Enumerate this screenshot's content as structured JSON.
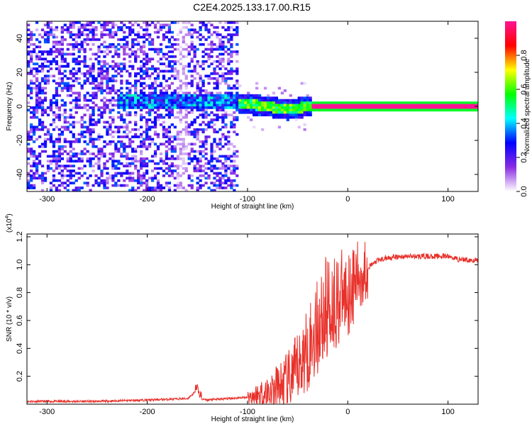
{
  "page": {
    "title": "C2E4.2025.133.17.00.R15"
  },
  "chart_data": [
    {
      "type": "heatmap",
      "title": "C2E4.2025.133.17.00.R15",
      "xlabel": "Height of straight line (km)",
      "ylabel": "Frequency (Hz)",
      "xlim": [
        -320,
        130
      ],
      "ylim": [
        -50,
        50
      ],
      "x_ticks": [
        -300,
        -200,
        -100,
        0,
        100
      ],
      "y_ticks": [
        -40,
        -20,
        0,
        20,
        40
      ],
      "colorbar": {
        "label": "Normalized spectral amplitude",
        "range": [
          0,
          1
        ],
        "ticks": [
          "0.0",
          "0.2",
          "0.4",
          "0.6",
          "0.8"
        ],
        "tick_values": [
          0.0,
          0.2,
          0.4,
          0.6,
          0.8
        ],
        "colormap": [
          "#ffffff",
          "#8a2be2",
          "#0000ff",
          "#00ffff",
          "#00ff00",
          "#ffff00",
          "#ff0000",
          "#ff1493"
        ]
      },
      "features": [
        {
          "description": "tonal line",
          "freq": 0,
          "x_range": [
            -35,
            130
          ],
          "amplitude": 1.0
        },
        {
          "description": "drifting tone",
          "points": [
            [
              -110,
              2
            ],
            [
              -80,
              0
            ],
            [
              -60,
              -2
            ],
            [
              -40,
              0
            ],
            [
              -20,
              2
            ],
            [
              -5,
              1
            ]
          ]
        },
        {
          "description": "broadband noise",
          "x_range": [
            -320,
            -110
          ],
          "amplitude": 0.3
        }
      ],
      "grid": false
    },
    {
      "type": "line",
      "xlabel": "Height of straight line (km)",
      "ylabel": "SNR (10 * v/v)",
      "y_multiplier": "(x10",
      "y_multiplier_exp": "4",
      "y_multiplier_close": ")",
      "xlim": [
        -320,
        130
      ],
      "ylim": [
        0,
        1.22
      ],
      "x_ticks": [
        -300,
        -200,
        -100,
        0,
        100
      ],
      "y_ticks": [
        0.2,
        0.4,
        0.6,
        0.8,
        1.0,
        1.2
      ],
      "y_tick_labels": [
        "0.2",
        "0.4",
        "0.6",
        "0.8",
        "1.0",
        "1.2"
      ],
      "series": [
        {
          "color": "#e8302a",
          "x": [
            -320,
            -250,
            -200,
            -160,
            -150,
            -148,
            -140,
            -120,
            -100,
            -80,
            -60,
            -50,
            -40,
            -30,
            -20,
            -10,
            0,
            10,
            20,
            30,
            40,
            60,
            80,
            100,
            110,
            130
          ],
          "y": [
            0.02,
            0.02,
            0.03,
            0.04,
            0.1,
            0.04,
            0.03,
            0.04,
            0.05,
            0.08,
            0.15,
            0.25,
            0.4,
            0.55,
            0.7,
            0.75,
            0.8,
            0.9,
            0.98,
            1.03,
            1.05,
            1.06,
            1.06,
            1.06,
            1.04,
            1.03
          ]
        }
      ],
      "grid": false
    }
  ]
}
